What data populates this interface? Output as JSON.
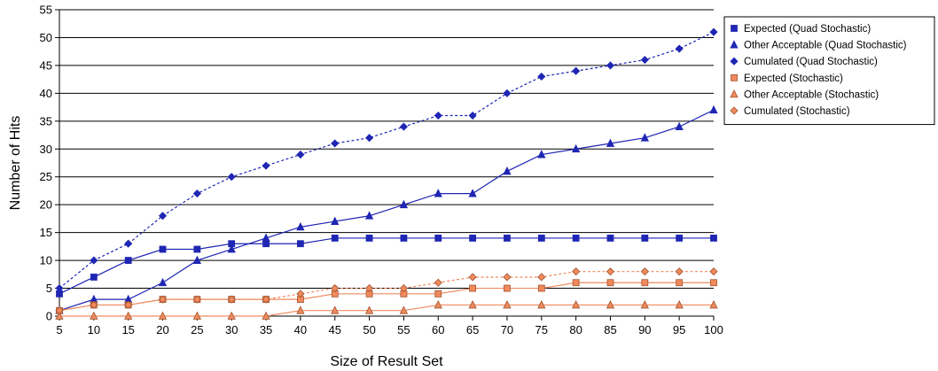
{
  "chart_data": {
    "type": "line",
    "title": "",
    "xlabel": "Size of Result Set",
    "ylabel": "Number of Hits",
    "x": [
      5,
      10,
      15,
      20,
      25,
      30,
      35,
      40,
      45,
      50,
      55,
      60,
      65,
      70,
      75,
      80,
      85,
      90,
      95,
      100
    ],
    "xlim": [
      5,
      100
    ],
    "ylim": [
      0,
      55
    ],
    "yticks": [
      0,
      5,
      10,
      15,
      20,
      25,
      30,
      35,
      40,
      45,
      50,
      55
    ],
    "grid": "horizontal",
    "legend_position": "top-right",
    "series": [
      {
        "name": "Expected (Quad Stochastic)",
        "color": "#1f26b3",
        "marker": "square",
        "line": "solid",
        "values": [
          4,
          7,
          10,
          12,
          12,
          13,
          13,
          13,
          14,
          14,
          14,
          14,
          14,
          14,
          14,
          14,
          14,
          14,
          14,
          14
        ]
      },
      {
        "name": "Other Acceptable (Quad Stochastic)",
        "color": "#1f26b3",
        "marker": "triangle",
        "line": "solid",
        "values": [
          1,
          3,
          3,
          6,
          10,
          12,
          14,
          16,
          17,
          18,
          20,
          22,
          22,
          26,
          29,
          30,
          31,
          32,
          34,
          37
        ]
      },
      {
        "name": "Cumulated (Quad Stochastic)",
        "color": "#1f26b3",
        "marker": "diamond",
        "line": "dashed",
        "values": [
          5,
          10,
          13,
          18,
          22,
          25,
          27,
          29,
          31,
          32,
          34,
          36,
          36,
          40,
          43,
          44,
          45,
          46,
          48,
          51
        ]
      },
      {
        "name": "Expected (Stochastic)",
        "color": "#f08a5d",
        "marker": "square",
        "line": "solid",
        "values": [
          1,
          2,
          2,
          3,
          3,
          3,
          3,
          3,
          4,
          4,
          4,
          4,
          5,
          5,
          5,
          6,
          6,
          6,
          6,
          6
        ]
      },
      {
        "name": "Other Acceptable (Stochastic)",
        "color": "#f08a5d",
        "marker": "triangle",
        "line": "solid",
        "values": [
          0,
          0,
          0,
          0,
          0,
          0,
          0,
          1,
          1,
          1,
          1,
          2,
          2,
          2,
          2,
          2,
          2,
          2,
          2,
          2
        ]
      },
      {
        "name": "Cumulated (Stochastic)",
        "color": "#f08a5d",
        "marker": "diamond",
        "line": "dashed",
        "values": [
          1,
          2,
          2,
          3,
          3,
          3,
          3,
          4,
          5,
          5,
          5,
          6,
          7,
          7,
          7,
          8,
          8,
          8,
          8,
          8
        ]
      }
    ]
  }
}
